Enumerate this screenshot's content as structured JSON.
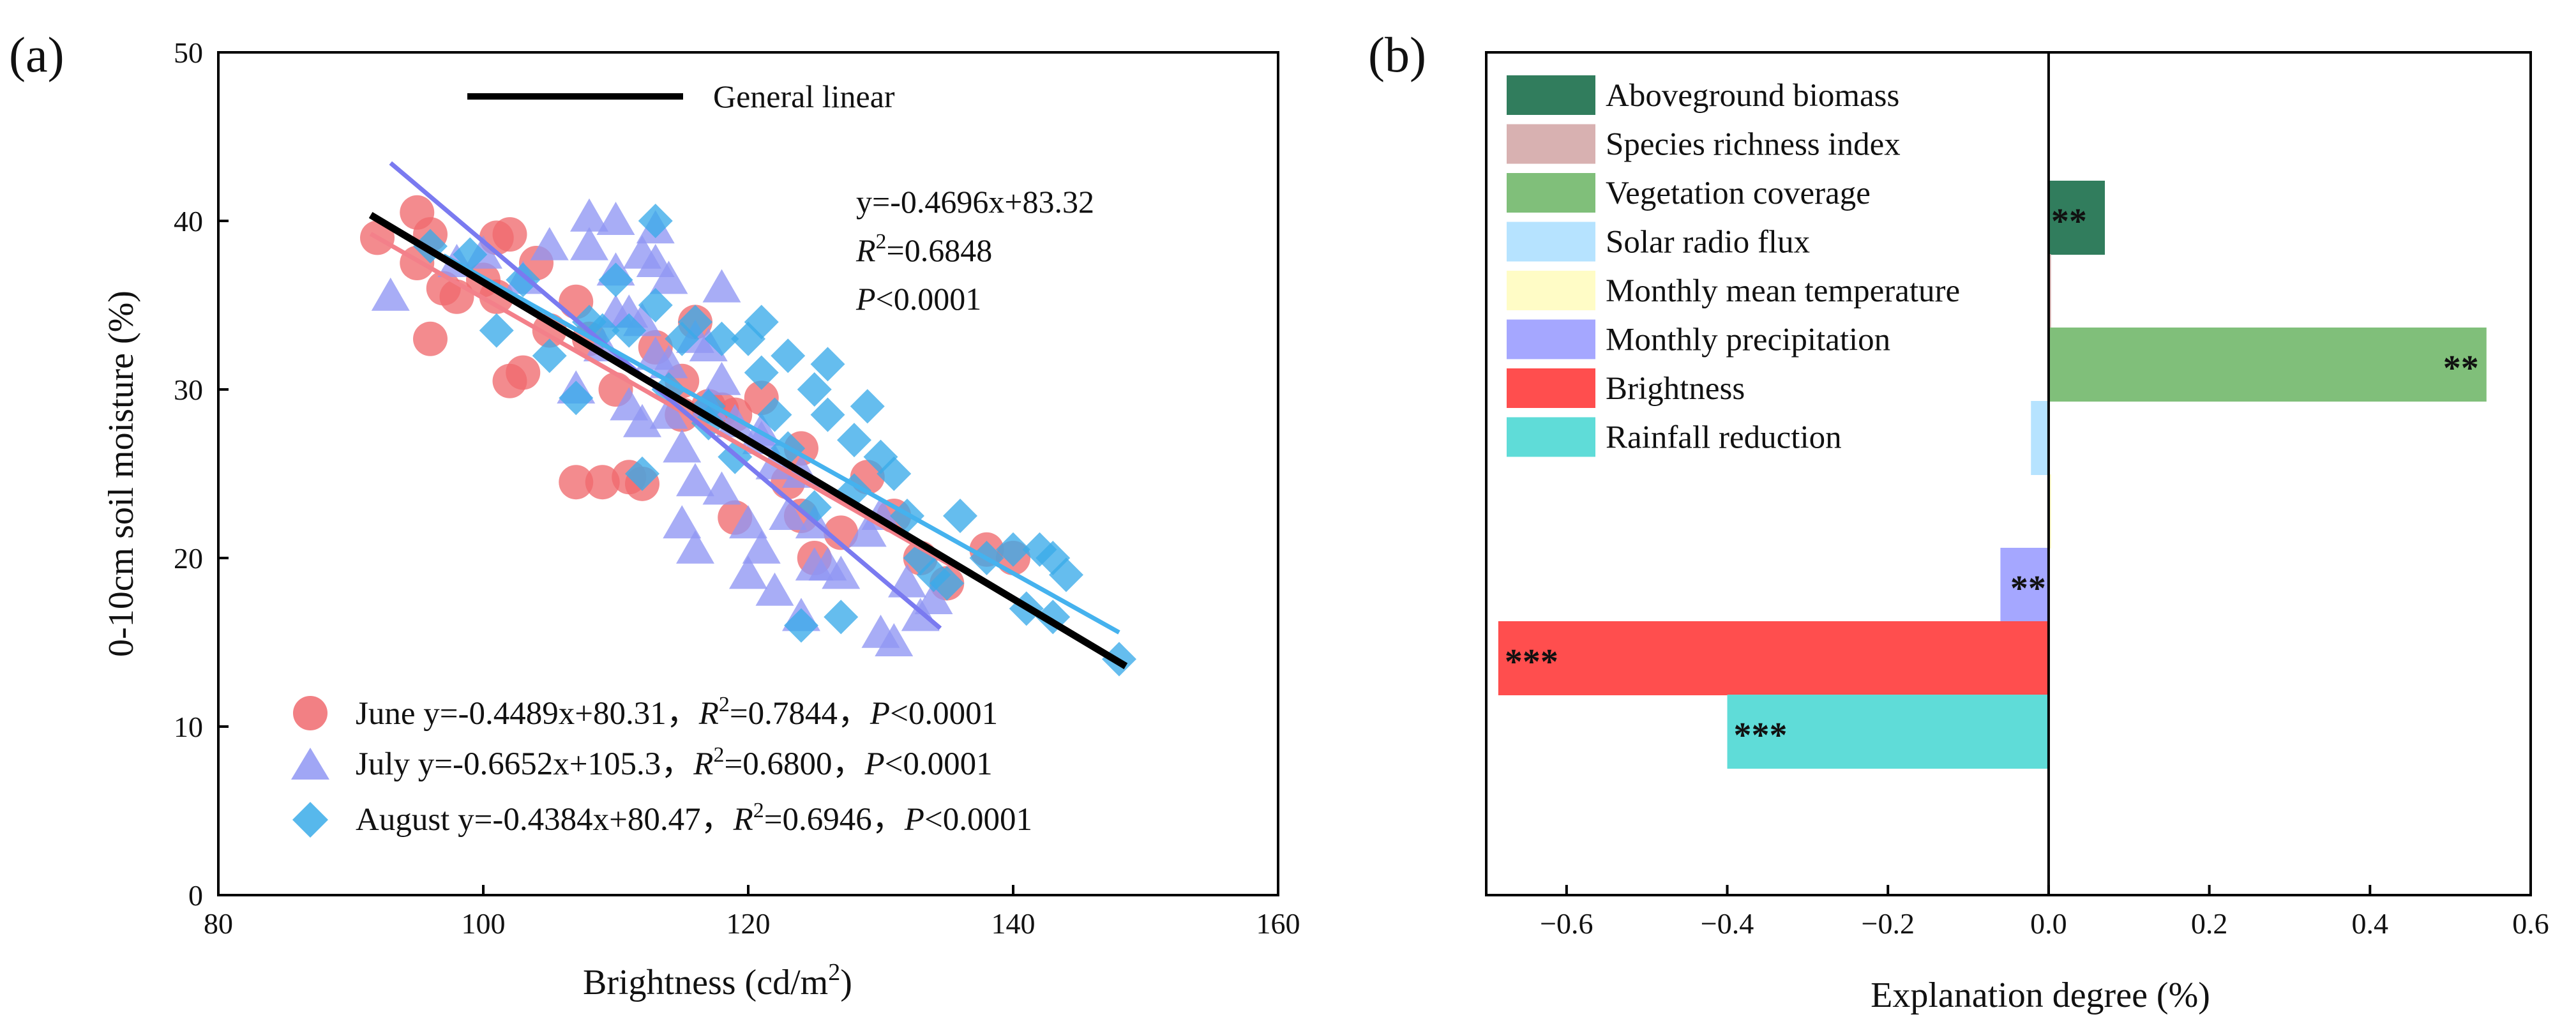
{
  "chart_data": [
    {
      "panel": "(a)",
      "type": "scatter",
      "xlabel": "Brightness (cd/m",
      "xlabel_sup": "2",
      "xlabel_end": ")",
      "ylabel": "0-10cm soil moisture (%)",
      "xlim": [
        80,
        160
      ],
      "ylim": [
        0,
        50
      ],
      "xticks": [
        "80",
        "100",
        "120",
        "140",
        "160"
      ],
      "yticks": [
        "0",
        "10",
        "20",
        "30",
        "40",
        "50"
      ],
      "general_fit": {
        "legend": "General linear",
        "slope": -0.4696,
        "intercept": 83.32,
        "x_range": [
          91.5,
          148.5
        ],
        "color": "#000000",
        "eq": "y=-0.4696x+83.32",
        "r2_label": "R",
        "r2_sup": "2",
        "r2_value": "=0.6848",
        "p_label": "P",
        "p_value": "<0.0001"
      },
      "series": [
        {
          "name": "June",
          "color": "#f06a6e",
          "marker": "circle",
          "legend_name": "June y=-0.4489x+80.31，",
          "legend_r2": "=0.7844，",
          "legend_p": "<0.0001",
          "fit": {
            "slope": -0.4489,
            "intercept": 80.31,
            "x_range": [
              91.5,
              135.5
            ],
            "color": "#f3808a"
          },
          "x": [
            92,
            95,
            96,
            97,
            96,
            98,
            100,
            101,
            102,
            102,
            103,
            104,
            105,
            107,
            107,
            109,
            110,
            111,
            112,
            115,
            116,
            118,
            119,
            119,
            121,
            123,
            124,
            125,
            127,
            129,
            131,
            133,
            135,
            138,
            140,
            95,
            101,
            108,
            115,
            124,
            113,
            117
          ],
          "y": [
            39,
            40.5,
            39.2,
            36,
            33,
            35.5,
            36.5,
            39,
            39.2,
            30.5,
            31,
            37.5,
            33.5,
            35.2,
            24.5,
            24.5,
            30,
            24.8,
            24.4,
            28.5,
            34,
            28.8,
            28.5,
            22.4,
            29.5,
            24.5,
            22.5,
            20,
            21.5,
            24.8,
            22.5,
            20,
            18.5,
            20.5,
            20,
            37.5,
            35.5,
            33,
            30.5,
            26.5,
            32.5,
            29
          ]
        },
        {
          "name": "July",
          "color": "#8f96f3",
          "marker": "triangle",
          "legend_name": "July y=-0.6652x+105.3，",
          "legend_r2": "=0.6800，",
          "legend_p": "<0.0001",
          "fit": {
            "slope": -0.6652,
            "intercept": 105.3,
            "x_range": [
              93,
              134.5
            ],
            "color": "#7a7af0"
          },
          "x": [
            93,
            98,
            100,
            103,
            105,
            107,
            108,
            108,
            109,
            110,
            110,
            111,
            111,
            112,
            112,
            113,
            113,
            113,
            114,
            114,
            114,
            115,
            115,
            116,
            116,
            117,
            117,
            118,
            118,
            119,
            120,
            120,
            121,
            121,
            122,
            122,
            123,
            124,
            124,
            125,
            125,
            126,
            127,
            129,
            130,
            130,
            131,
            132,
            133,
            134,
            112,
            116,
            121,
            110,
            118
          ],
          "y": [
            35.5,
            37.5,
            38,
            36.5,
            38.5,
            30,
            40.2,
            38.5,
            32.5,
            34.5,
            40,
            29,
            34.5,
            34,
            28,
            39.5,
            37.5,
            32,
            36.5,
            31.5,
            28.5,
            26.5,
            22,
            24.5,
            20.5,
            32.5,
            29,
            36,
            24,
            28,
            22,
            19,
            27,
            20.5,
            25.5,
            18,
            22.5,
            25,
            16.5,
            22,
            19.5,
            19.5,
            19,
            21.5,
            15.5,
            22.5,
            15,
            18.5,
            16.5,
            17.5,
            38,
            33,
            27.5,
            37,
            30.5
          ]
        },
        {
          "name": "August",
          "color": "#3aabe9",
          "marker": "diamond",
          "legend_name": "August y=-0.4384x+80.47，",
          "legend_r2": "=0.6946，",
          "legend_p": "<0.0001",
          "fit": {
            "slope": -0.4384,
            "intercept": 80.47,
            "x_range": [
              97,
              148
            ],
            "color": "#45b2ee"
          },
          "x": [
            96,
            99,
            101,
            103,
            105,
            107,
            108,
            110,
            111,
            112,
            113,
            114,
            115,
            116,
            117,
            118,
            119,
            120,
            121,
            122,
            123,
            123,
            124,
            125,
            126,
            126,
            127,
            128,
            129,
            130,
            131,
            132,
            133,
            134,
            136,
            138,
            140,
            142,
            143,
            143,
            144,
            148,
            125,
            117,
            109,
            135,
            141,
            128,
            121,
            113
          ],
          "y": [
            38.5,
            38,
            33.5,
            36.5,
            32,
            29.5,
            34,
            36.5,
            33.5,
            25,
            40,
            30,
            33,
            34,
            29,
            33,
            26,
            33,
            34,
            28.5,
            32,
            26.5,
            16,
            23,
            31.5,
            28.5,
            16.5,
            27,
            29,
            26,
            25,
            22.5,
            20,
            19,
            22.5,
            20,
            20.5,
            20.5,
            20,
            16.5,
            19,
            14,
            30,
            28,
            33.5,
            18.5,
            17,
            24,
            31,
            35
          ]
        }
      ]
    },
    {
      "panel": "(b)",
      "type": "bar",
      "orientation": "horizontal",
      "xlabel": "Explanation degree (%)",
      "xlim": [
        -0.7,
        0.6
      ],
      "xticks": [
        "−0.6",
        "−0.4",
        "−0.2",
        "0.0",
        "0.2",
        "0.4",
        "0.6"
      ],
      "categories": [
        "Aboveground biomass",
        "Species richness index",
        "Vegetation coverage",
        "Solar radio flux",
        "Monthly mean temperature",
        "Monthly precipitation",
        "Brightness",
        "Rainfall reduction"
      ],
      "values": [
        0.07,
        0.003,
        0.545,
        -0.022,
        0.003,
        -0.06,
        -0.685,
        -0.4
      ],
      "colors": [
        "#317d5d",
        "#d8b1b1",
        "#80bf7a",
        "#b6e3ff",
        "#fffcc6",
        "#a5a7ff",
        "#ff4e4e",
        "#5fdcd8"
      ],
      "significance": [
        "**",
        "",
        "**",
        "",
        "",
        "**",
        "***",
        "***"
      ]
    }
  ]
}
